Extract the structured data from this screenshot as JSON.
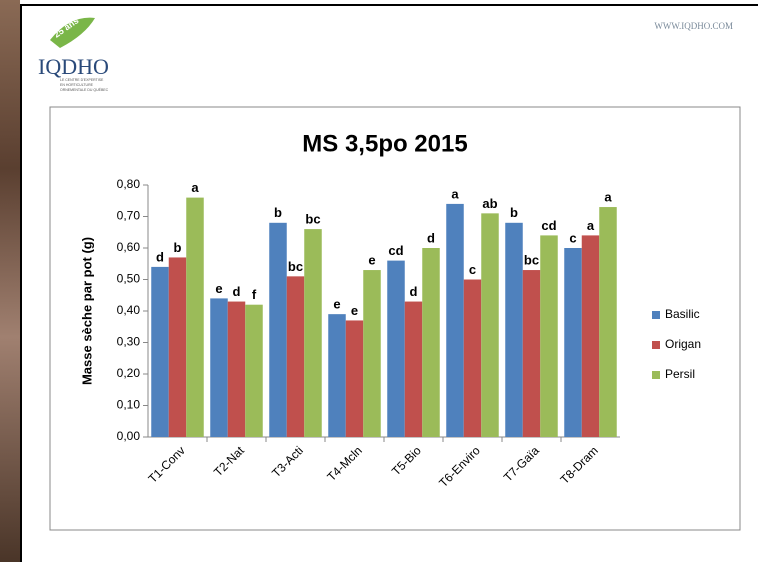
{
  "header": {
    "logo": "IQDHO",
    "badge": "25 ans",
    "tagline": [
      "LE CENTRE D'EXPERTISE",
      "EN HORTICULTURE",
      "ORNEMENTALE DU QUÉBEC"
    ],
    "website": "WWW.IQDHO.COM"
  },
  "chart_data": {
    "type": "bar",
    "title": "MS 3,5po 2015",
    "y_label": "Masse sèche par pot (g)",
    "categories": [
      "T1-Conv",
      "T2-Nat",
      "T3-Acti",
      "T4-Mcln",
      "T5-Bio",
      "T6-Enviro",
      "T7-Gaïa",
      "T8-Dram"
    ],
    "series": [
      {
        "name": "Basilic",
        "color": "#4f81bd",
        "values": [
          0.54,
          0.44,
          0.68,
          0.39,
          0.56,
          0.74,
          0.68,
          0.6
        ],
        "letters": [
          "d",
          "e",
          "b",
          "e",
          "cd",
          "a",
          "b",
          "c"
        ]
      },
      {
        "name": "Origan",
        "color": "#c0504d",
        "values": [
          0.57,
          0.43,
          0.51,
          0.37,
          0.43,
          0.5,
          0.53,
          0.64
        ],
        "letters": [
          "b",
          "d",
          "bc",
          "e",
          "d",
          "c",
          "bc",
          "a"
        ]
      },
      {
        "name": "Persil",
        "color": "#9bbb59",
        "values": [
          0.76,
          0.42,
          0.66,
          0.53,
          0.6,
          0.71,
          0.64,
          0.73
        ],
        "letters": [
          "a",
          "f",
          "bc",
          "e",
          "d",
          "ab",
          "cd",
          "a"
        ]
      }
    ],
    "ylim": [
      0,
      0.8
    ],
    "yticks": [
      {
        "value": 0,
        "label": "0,00"
      },
      {
        "value": 0.1,
        "label": "0,10"
      },
      {
        "value": 0.2,
        "label": "0,20"
      },
      {
        "value": 0.3,
        "label": "0,30"
      },
      {
        "value": 0.4,
        "label": "0,40"
      },
      {
        "value": 0.5,
        "label": "0,50"
      },
      {
        "value": 0.6,
        "label": "0,60"
      },
      {
        "value": 0.7,
        "label": "0,70"
      },
      {
        "value": 0.8,
        "label": "0,80"
      }
    ],
    "legend": "right"
  }
}
